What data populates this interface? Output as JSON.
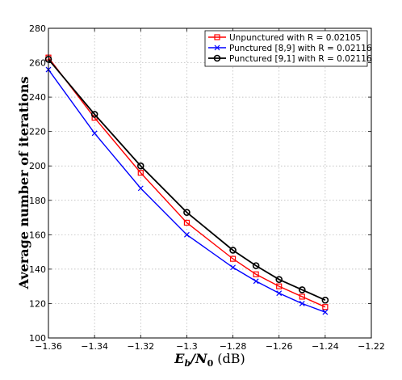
{
  "chart_data": {
    "type": "line",
    "title": "",
    "xlabel": "E_b/N_0 (dB)",
    "xlabel_parts": {
      "e": "E",
      "b": "b",
      "slash": "/",
      "n": "N",
      "zero": "0",
      "unit": "(dB)"
    },
    "ylabel": "Average number of iterations",
    "xlim": [
      -1.36,
      -1.22
    ],
    "ylim": [
      100,
      280
    ],
    "xticks": [
      -1.36,
      -1.34,
      -1.32,
      -1.3,
      -1.28,
      -1.26,
      -1.24,
      -1.22
    ],
    "xtick_labels": [
      "−1.36",
      "−1.34",
      "−1.32",
      "−1.3",
      "−1.28",
      "−1.26",
      "−1.24",
      "−1.22"
    ],
    "yticks": [
      100,
      120,
      140,
      160,
      180,
      200,
      220,
      240,
      260,
      280
    ],
    "ytick_labels": [
      "100",
      "120",
      "140",
      "160",
      "180",
      "200",
      "220",
      "240",
      "260",
      "280"
    ],
    "grid": true,
    "legend_position": "top-right",
    "series": [
      {
        "name": "Unpunctured with R = 0.02105",
        "color": "#ff0000",
        "marker": "square",
        "x": [
          -1.36,
          -1.34,
          -1.32,
          -1.3,
          -1.28,
          -1.27,
          -1.26,
          -1.25,
          -1.24
        ],
        "y": [
          263,
          228,
          196,
          167,
          146,
          137,
          130,
          124,
          118
        ]
      },
      {
        "name": "Punctured [8,9] with R = 0.02116",
        "color": "#0000ff",
        "marker": "x",
        "x": [
          -1.36,
          -1.34,
          -1.32,
          -1.3,
          -1.28,
          -1.27,
          -1.26,
          -1.25,
          -1.24
        ],
        "y": [
          256,
          219,
          187,
          160,
          141,
          133,
          126,
          120,
          115
        ]
      },
      {
        "name": "Punctured [9,1] with R = 0.02116",
        "color": "#000000",
        "marker": "circle",
        "x": [
          -1.36,
          -1.34,
          -1.32,
          -1.3,
          -1.28,
          -1.27,
          -1.26,
          -1.25,
          -1.24
        ],
        "y": [
          262,
          230,
          200,
          173,
          151,
          142,
          134,
          128,
          122
        ]
      }
    ]
  }
}
